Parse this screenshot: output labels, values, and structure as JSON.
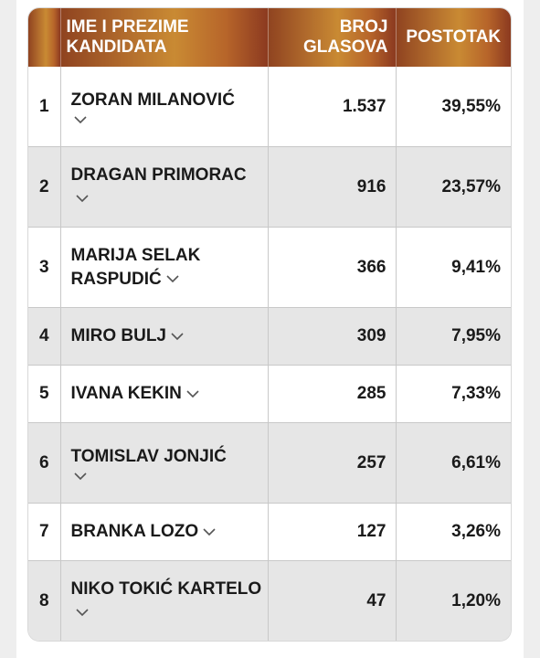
{
  "table": {
    "headers": {
      "name": "IME I PREZIME KANDIDATA",
      "votes": "BROJ GLASOVA",
      "percent": "POSTOTAK"
    },
    "rows": [
      {
        "rank": "1",
        "name": "ZORAN MILANOVIĆ",
        "votes": "1.537",
        "percent": "39,55%"
      },
      {
        "rank": "2",
        "name": "DRAGAN PRIMORAC",
        "votes": "916",
        "percent": "23,57%"
      },
      {
        "rank": "3",
        "name": "MARIJA SELAK RASPUDIĆ",
        "votes": "366",
        "percent": "9,41%"
      },
      {
        "rank": "4",
        "name": "MIRO BULJ",
        "votes": "309",
        "percent": "7,95%"
      },
      {
        "rank": "5",
        "name": "IVANA KEKIN",
        "votes": "285",
        "percent": "7,33%"
      },
      {
        "rank": "6",
        "name": "TOMISLAV JONJIĆ",
        "votes": "257",
        "percent": "6,61%"
      },
      {
        "rank": "7",
        "name": "BRANKA LOZO",
        "votes": "127",
        "percent": "3,26%"
      },
      {
        "rank": "8",
        "name": "NIKO TOKIĆ KARTELO",
        "votes": "47",
        "percent": "1,20%"
      }
    ]
  },
  "icons": {
    "expand": "chevron-down-icon"
  },
  "colors": {
    "header_gradient_start": "#8f4320",
    "header_gradient_mid": "#c98a33",
    "header_gradient_end": "#8c3a20",
    "row_alt": "#e6e6e6",
    "border": "#c8c8c8"
  }
}
